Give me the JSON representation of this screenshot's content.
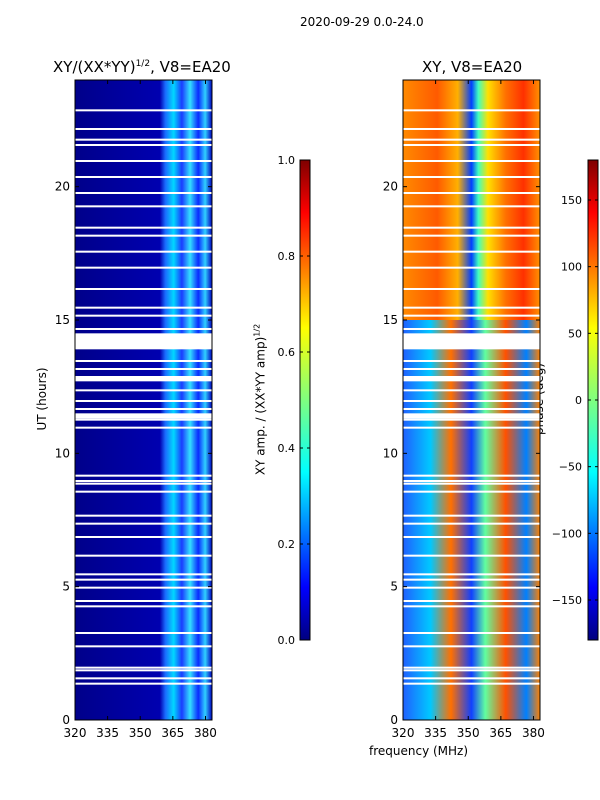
{
  "figure": {
    "suptitle": "2020-09-29 0.0-24.0",
    "xlabel": "frequency (MHz)"
  },
  "chart_data": [
    {
      "type": "heatmap",
      "title_main": "XY/(XX*YY)",
      "title_sup": "1/2",
      "title_suffix": ", V8=EA20",
      "ylabel": "UT (hours)",
      "xlim": [
        320,
        383
      ],
      "ylim": [
        0,
        24
      ],
      "xticks": [
        320,
        335,
        350,
        365,
        380
      ],
      "yticks": [
        0,
        5,
        10,
        15,
        20
      ],
      "colorbar": {
        "label_main": "XY amp. / (XX*YY amp)",
        "label_sup": "1/2",
        "range": [
          0.0,
          1.0
        ],
        "ticks": [
          "0.0",
          "0.2",
          "0.4",
          "0.6",
          "0.8",
          "1.0"
        ],
        "tick_values": [
          0.0,
          0.2,
          0.4,
          0.6,
          0.8,
          1.0
        ],
        "colormap": "jet"
      }
    },
    {
      "type": "heatmap",
      "title": "XY, V8=EA20",
      "xlim": [
        320,
        383
      ],
      "ylim": [
        0,
        24
      ],
      "xticks": [
        320,
        335,
        350,
        365,
        380
      ],
      "yticks": [
        0,
        5,
        10,
        15,
        20
      ],
      "colorbar": {
        "label": "phase (deg)",
        "range": [
          -180,
          180
        ],
        "ticks": [
          "−150",
          "−100",
          "−50",
          "0",
          "50",
          "100",
          "150"
        ],
        "tick_values": [
          -150,
          -100,
          -50,
          0,
          50,
          100,
          150
        ],
        "colormap": "jet"
      }
    }
  ],
  "colors": {
    "jet_dark_blue": "#00007f",
    "jet_blue": "#0000ff",
    "jet_cyan": "#00ffff",
    "jet_yellow": "#ffff00",
    "jet_red": "#ff0000",
    "jet_dark_red": "#7f0000"
  }
}
